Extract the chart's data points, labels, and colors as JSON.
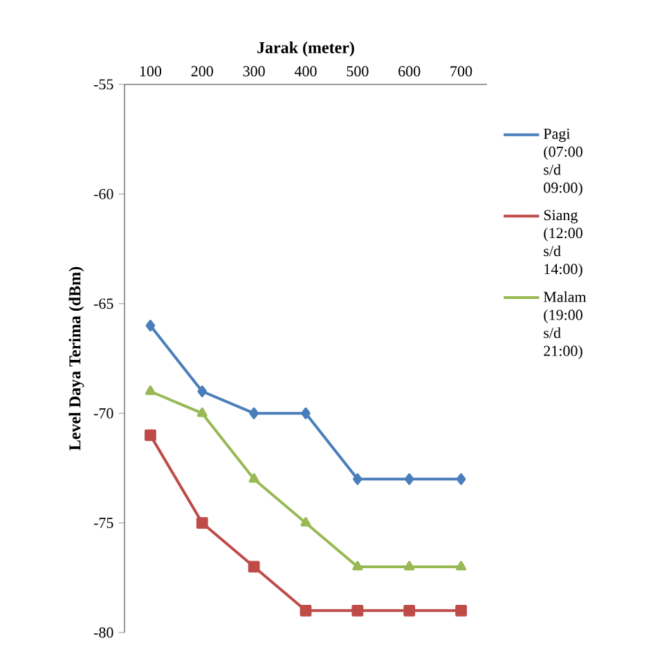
{
  "chart_data": {
    "type": "line",
    "xlabel": "Jarak (meter)",
    "ylabel": "Level Daya Terima (dBm)",
    "categories": [
      "100",
      "200",
      "300",
      "400",
      "500",
      "600",
      "700"
    ],
    "ylim": [
      -80,
      -55
    ],
    "yticks": [
      -80,
      -75,
      -70,
      -65,
      -60,
      -55
    ],
    "grid": false,
    "legend": "right",
    "line_style": "solid",
    "series": [
      {
        "name": "Pagi (07:00 s/d 09:00)",
        "color": "#4a7ebb",
        "marker": "diamond",
        "values": [
          -66,
          -69,
          -70,
          -70,
          -73,
          -73,
          -73
        ]
      },
      {
        "name": "Siang (12:00 s/d 14:00)",
        "color": "#be4b48",
        "marker": "square",
        "values": [
          -71,
          -75,
          -77,
          -79,
          -79,
          -79,
          -79
        ]
      },
      {
        "name": "Malam (19:00 s/d 21:00)",
        "color": "#98b954",
        "marker": "triangle",
        "values": [
          -69,
          -70,
          -73,
          -75,
          -77,
          -77,
          -77
        ]
      }
    ]
  }
}
